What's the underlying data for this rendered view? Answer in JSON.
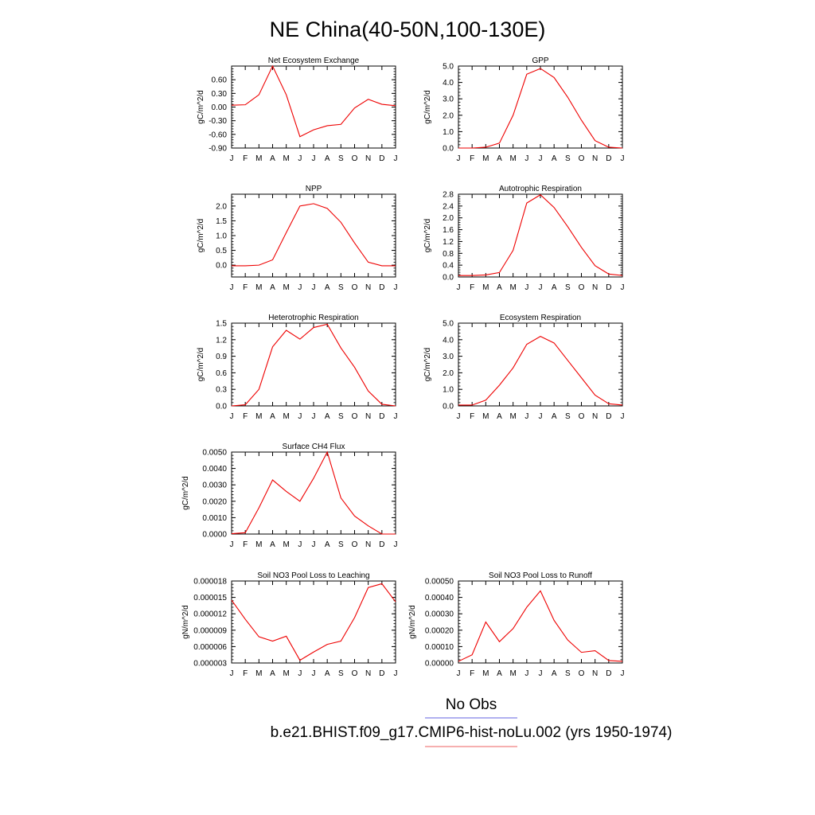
{
  "title": "NE China(40-50N,100-130E)",
  "legend": [
    {
      "label": "No Obs",
      "color": "#8080e8"
    },
    {
      "label": "b.e21.BHIST.f09_g17.CMIP6-hist-noLu.002 (yrs 1950-1974)",
      "color": "#f08080"
    }
  ],
  "line_color": "#ee0000",
  "months": [
    "J",
    "F",
    "M",
    "A",
    "M",
    "J",
    "J",
    "A",
    "S",
    "O",
    "N",
    "D",
    "J"
  ],
  "chart_data": [
    {
      "id": "nee",
      "type": "line",
      "title": "Net Ecosystem Exchange",
      "ylabel": "gC/m^2/d",
      "ylim": [
        -0.9,
        0.9
      ],
      "yticks": [
        -0.9,
        -0.6,
        -0.3,
        0.0,
        0.3,
        0.6
      ],
      "yticklabels": [
        "-0.90",
        "-0.60",
        "-0.30",
        "0.00",
        "0.30",
        "0.60"
      ],
      "values": [
        0.04,
        0.05,
        0.27,
        0.9,
        0.27,
        -0.65,
        -0.5,
        -0.41,
        -0.38,
        -0.02,
        0.17,
        0.06,
        0.03
      ]
    },
    {
      "id": "gpp",
      "type": "line",
      "title": "GPP",
      "ylabel": "gC/m^2/d",
      "ylim": [
        0,
        5.0
      ],
      "yticks": [
        0,
        1,
        2,
        3,
        4,
        5
      ],
      "yticklabels": [
        "0.0",
        "1.0",
        "2.0",
        "3.0",
        "4.0",
        "5.0"
      ],
      "values": [
        0.0,
        0.0,
        0.05,
        0.3,
        2.0,
        4.5,
        4.85,
        4.3,
        3.1,
        1.7,
        0.45,
        0.05,
        0.0
      ]
    },
    {
      "id": "npp",
      "type": "line",
      "title": "NPP",
      "ylabel": "gC/m^2/d",
      "ylim": [
        -0.4,
        2.4
      ],
      "yticks": [
        0.0,
        0.5,
        1.0,
        1.5,
        2.0
      ],
      "yticklabels": [
        "0.0",
        "0.5",
        "1.0",
        "1.5",
        "2.0"
      ],
      "values": [
        -0.02,
        -0.02,
        0.0,
        0.18,
        1.1,
        2.0,
        2.08,
        1.92,
        1.45,
        0.75,
        0.1,
        -0.02,
        -0.02
      ]
    },
    {
      "id": "ar",
      "type": "line",
      "title": "Autotrophic Respiration",
      "ylabel": "gC/m^2/d",
      "ylim": [
        0,
        2.8
      ],
      "yticks": [
        0,
        0.4,
        0.8,
        1.2,
        1.6,
        2.0,
        2.4,
        2.8
      ],
      "yticklabels": [
        "0.0",
        "0.4",
        "0.8",
        "1.2",
        "1.6",
        "2.0",
        "2.4",
        "2.8"
      ],
      "values": [
        0.05,
        0.05,
        0.07,
        0.15,
        0.9,
        2.5,
        2.78,
        2.35,
        1.7,
        1.0,
        0.38,
        0.1,
        0.05
      ]
    },
    {
      "id": "hr",
      "type": "line",
      "title": "Heterotrophic Respiration",
      "ylabel": "gC/m^2/d",
      "ylim": [
        0,
        1.5
      ],
      "yticks": [
        0,
        0.3,
        0.6,
        0.9,
        1.2,
        1.5
      ],
      "yticklabels": [
        "0.0",
        "0.3",
        "0.6",
        "0.9",
        "1.2",
        "1.5"
      ],
      "values": [
        0.0,
        0.02,
        0.3,
        1.07,
        1.37,
        1.21,
        1.42,
        1.48,
        1.05,
        0.7,
        0.27,
        0.03,
        0.0
      ]
    },
    {
      "id": "er",
      "type": "line",
      "title": "Ecosystem Respiration",
      "ylabel": "gC/m^2/d",
      "ylim": [
        0,
        5.0
      ],
      "yticks": [
        0,
        1,
        2,
        3,
        4,
        5
      ],
      "yticklabels": [
        "0.0",
        "1.0",
        "2.0",
        "3.0",
        "4.0",
        "5.0"
      ],
      "values": [
        0.05,
        0.05,
        0.35,
        1.25,
        2.3,
        3.72,
        4.2,
        3.8,
        2.75,
        1.7,
        0.65,
        0.13,
        0.05
      ]
    },
    {
      "id": "ch4",
      "type": "line",
      "title": "Surface CH4 Flux",
      "ylabel": "gC/m^2/d",
      "ylim": [
        0,
        0.005
      ],
      "yticks": [
        0,
        0.001,
        0.002,
        0.003,
        0.004,
        0.005
      ],
      "yticklabels": [
        "0.0000",
        "0.0010",
        "0.0020",
        "0.0030",
        "0.0040",
        "0.0050"
      ],
      "values": [
        2e-05,
        8e-05,
        0.0016,
        0.0033,
        0.0026,
        0.002,
        0.0034,
        0.005,
        0.0022,
        0.0011,
        0.0005,
        0.0,
        0.0
      ]
    },
    {
      "id": "leach",
      "type": "line",
      "title": "Soil NO3 Pool Loss to Leaching",
      "ylabel": "gN/m^2/d",
      "ylim": [
        3e-06,
        1.8e-05
      ],
      "yticks": [
        3e-06,
        6e-06,
        9e-06,
        1.2e-05,
        1.5e-05,
        1.8e-05
      ],
      "yticklabels": [
        "0.000003",
        "0.000006",
        "0.000009",
        "0.000012",
        "0.000015",
        "0.000018"
      ],
      "values": [
        1.45e-05,
        1.1e-05,
        7.8e-06,
        7e-06,
        7.9e-06,
        3.5e-06,
        5e-06,
        6.4e-06,
        7e-06,
        1.13e-05,
        1.68e-05,
        1.75e-05,
        1.42e-05
      ]
    },
    {
      "id": "runoff",
      "type": "line",
      "title": "Soil NO3 Pool Loss to Runoff",
      "ylabel": "gN/m^2/d",
      "ylim": [
        0,
        0.0005
      ],
      "yticks": [
        0,
        0.0001,
        0.0002,
        0.0003,
        0.0004,
        0.0005
      ],
      "yticklabels": [
        "0.00000",
        "0.00010",
        "0.00020",
        "0.00030",
        "0.00040",
        "0.00050"
      ],
      "values": [
        1e-05,
        5e-05,
        0.00025,
        0.00013,
        0.00021,
        0.00034,
        0.00044,
        0.00026,
        0.00014,
        6.5e-05,
        7.5e-05,
        1.5e-05,
        1e-05
      ]
    }
  ]
}
